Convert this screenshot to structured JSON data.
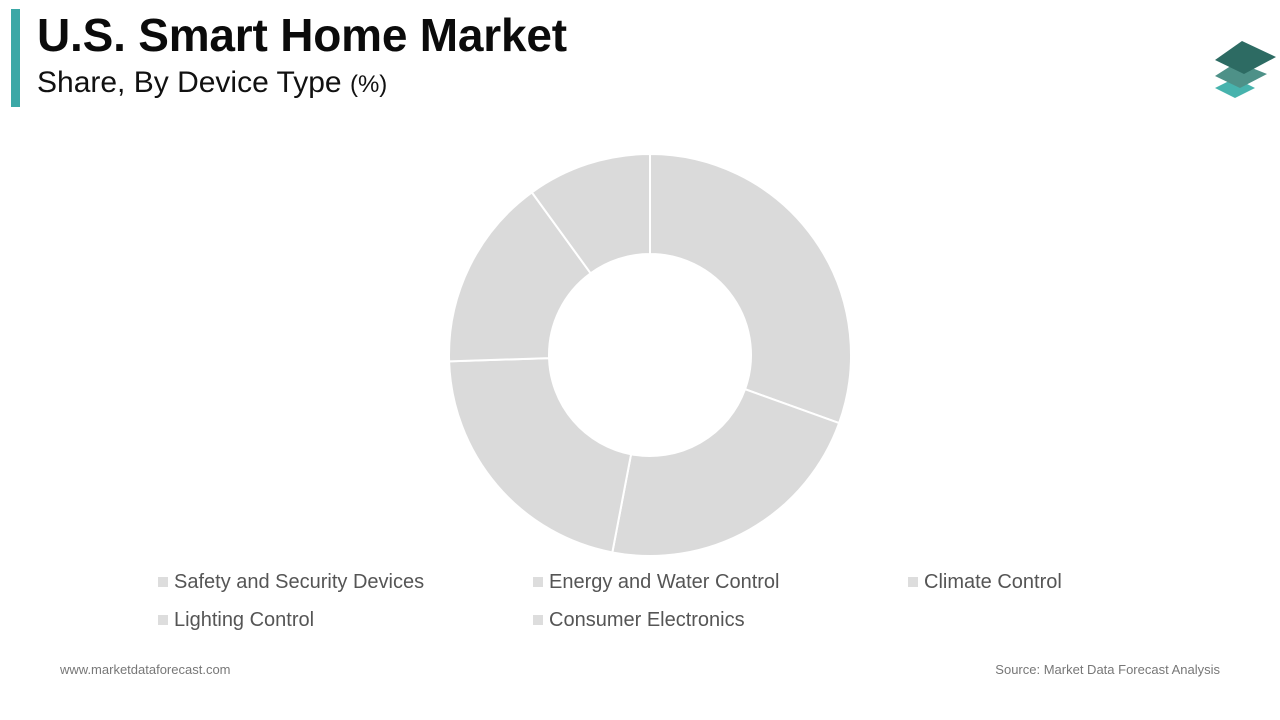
{
  "header": {
    "title": "U.S. Smart Home Market",
    "subtitle": "Share, By Device Type",
    "unit": "(%)"
  },
  "footer": {
    "website": "www.marketdataforecast.com",
    "source": "Source: Market Data Forecast Analysis"
  },
  "colors": {
    "accent": "#3ba8a6",
    "slice": "#dadada",
    "separator": "#ffffff",
    "legend_swatch": "#dddddd",
    "logo_dark": "#2d6b63",
    "logo_mid": "#4e9188",
    "logo_light": "#47b3ad"
  },
  "logo_icon": "stacked-layers-icon",
  "chart_data": {
    "type": "pie",
    "donut": true,
    "title": "U.S. Smart Home Market",
    "subtitle": "Share, By Device Type (%)",
    "categories": [
      "Safety and Security Devices",
      "Energy and Water Control",
      "Climate Control",
      "Lighting Control",
      "Consumer Electronics"
    ],
    "values": [
      30.5,
      22.5,
      21.5,
      15.5,
      10.0
    ],
    "legend_position": "bottom",
    "data_labels": false
  }
}
